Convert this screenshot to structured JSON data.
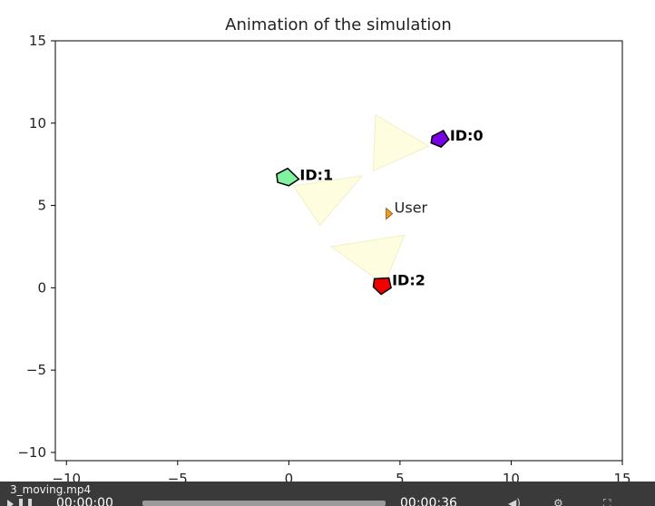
{
  "player": {
    "file_title": "3_moving.mp4",
    "time_current": "00:00:00",
    "time_total": "00:00:36",
    "progress_fraction": 0.0,
    "icons": [
      "play-icon",
      "pause-icon",
      "volume-icon",
      "settings-icon",
      "fullscreen-icon"
    ]
  },
  "chart_data": {
    "type": "scatter",
    "title": "Animation of the simulation",
    "xlabel": "",
    "ylabel": "",
    "xlim": [
      -10.5,
      15
    ],
    "ylim": [
      -10.5,
      15
    ],
    "xticks": [
      -10,
      -5,
      0,
      5,
      10,
      15
    ],
    "yticks": [
      -10,
      -5,
      0,
      5,
      10,
      15
    ],
    "xtick_labels": [
      "−10",
      "−5",
      "0",
      "5",
      "10",
      "15"
    ],
    "ytick_labels": [
      "−10",
      "−5",
      "0",
      "5",
      "10",
      "15"
    ],
    "grid": false,
    "cones": [
      {
        "points": [
          [
            3.9,
            10.5
          ],
          [
            6.3,
            8.6
          ],
          [
            3.8,
            7.1
          ]
        ],
        "color": "#fffde0"
      },
      {
        "points": [
          [
            0.2,
            6.2
          ],
          [
            3.3,
            6.8
          ],
          [
            1.4,
            3.8
          ]
        ],
        "color": "#fffde0"
      },
      {
        "points": [
          [
            1.9,
            2.5
          ],
          [
            5.2,
            3.2
          ],
          [
            4.3,
            0.2
          ]
        ],
        "color": "#fffde0"
      }
    ],
    "agents": [
      {
        "label": "ID:0",
        "x": 6.8,
        "y": 9.0,
        "color": "#7a00e6",
        "shape": [
          [
            6.45,
            9.2
          ],
          [
            6.95,
            9.55
          ],
          [
            7.2,
            9.0
          ],
          [
            6.85,
            8.55
          ],
          [
            6.4,
            8.8
          ]
        ]
      },
      {
        "label": "ID:1",
        "x": -0.1,
        "y": 6.6,
        "color": "#80f2a0",
        "shape": [
          [
            -0.55,
            6.9
          ],
          [
            -0.05,
            7.25
          ],
          [
            0.45,
            6.6
          ],
          [
            0.0,
            6.2
          ],
          [
            -0.5,
            6.4
          ]
        ]
      },
      {
        "label": "ID:2",
        "x": 4.2,
        "y": 0.2,
        "color": "#f20000",
        "shape": [
          [
            3.85,
            0.55
          ],
          [
            4.5,
            0.6
          ],
          [
            4.6,
            0.0
          ],
          [
            4.15,
            -0.4
          ],
          [
            3.8,
            0.05
          ]
        ]
      }
    ],
    "user": {
      "label": "User",
      "x": 4.5,
      "y": 4.5,
      "color": "#f0a020"
    }
  }
}
